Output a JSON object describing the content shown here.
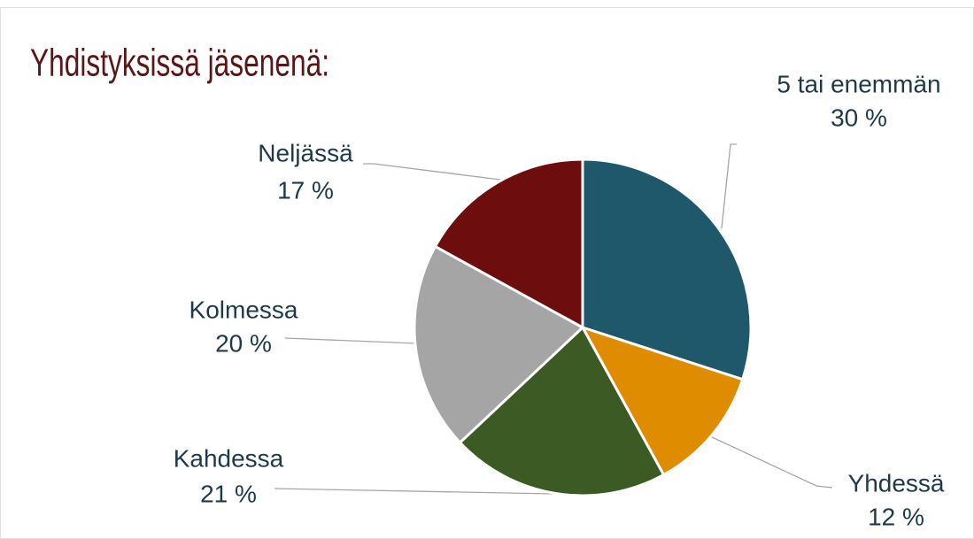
{
  "chart_data": {
    "type": "pie",
    "title": "Yhdistyksissä jäsenenä:",
    "categories": [
      "5 tai enemmän",
      "Yhdessä",
      "Kahdessa",
      "Kolmessa",
      "Neljässä"
    ],
    "values": [
      30,
      12,
      21,
      20,
      17
    ],
    "value_labels": [
      "30 %",
      "12 %",
      "21 %",
      "20 %",
      "17 %"
    ],
    "colors": [
      "#1f586b",
      "#e08c00",
      "#3b5a24",
      "#a5a5a5",
      "#6e0d0d"
    ]
  }
}
